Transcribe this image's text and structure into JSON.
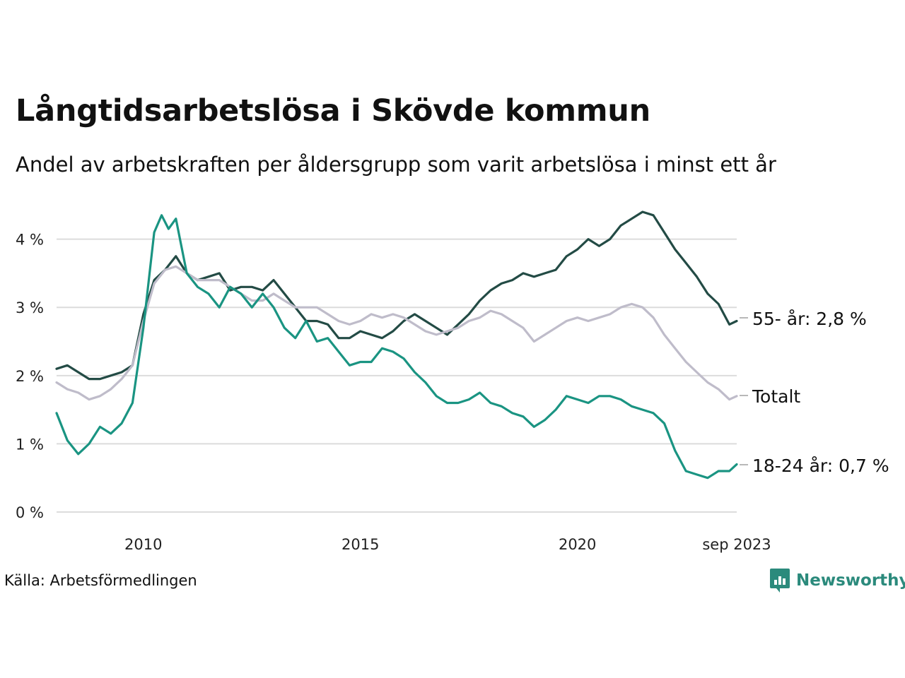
{
  "title": "Långtidsarbetslösa i Skövde kommun",
  "subtitle": "Andel av arbetskraften per åldersgrupp som varit arbetslösa i minst ett år",
  "source": "Källa: Arbetsförmedlingen",
  "brand": "Newsworthy",
  "colors": {
    "senior": "#234b45",
    "young": "#1a9482",
    "total": "#bfbcca",
    "grid": "#dcdcdc",
    "brand": "#2b8a7c"
  },
  "chart_data": {
    "type": "line",
    "ylim": [
      0,
      4.4
    ],
    "xlim": [
      2008.0,
      2023.67
    ],
    "yticks": [
      0,
      1,
      2,
      3,
      4
    ],
    "ytick_labels": [
      "0 %",
      "1 %",
      "2 %",
      "3 %",
      "4 %"
    ],
    "xticks": [
      2010,
      2015,
      2020,
      2023.67
    ],
    "xtick_labels": [
      "2010",
      "2015",
      "2020",
      "sep 2023"
    ],
    "grid": true,
    "series": [
      {
        "name": "55- år",
        "label": "55- år: 2,8 %",
        "color_key": "senior",
        "points": [
          [
            2008.0,
            2.1
          ],
          [
            2008.25,
            2.15
          ],
          [
            2008.5,
            2.05
          ],
          [
            2008.75,
            1.95
          ],
          [
            2009.0,
            1.95
          ],
          [
            2009.25,
            2.0
          ],
          [
            2009.5,
            2.05
          ],
          [
            2009.75,
            2.15
          ],
          [
            2010.0,
            2.9
          ],
          [
            2010.25,
            3.4
          ],
          [
            2010.5,
            3.55
          ],
          [
            2010.75,
            3.75
          ],
          [
            2011.0,
            3.5
          ],
          [
            2011.25,
            3.4
          ],
          [
            2011.5,
            3.45
          ],
          [
            2011.75,
            3.5
          ],
          [
            2012.0,
            3.25
          ],
          [
            2012.25,
            3.3
          ],
          [
            2012.5,
            3.3
          ],
          [
            2012.75,
            3.25
          ],
          [
            2013.0,
            3.4
          ],
          [
            2013.25,
            3.2
          ],
          [
            2013.5,
            3.0
          ],
          [
            2013.75,
            2.8
          ],
          [
            2014.0,
            2.8
          ],
          [
            2014.25,
            2.75
          ],
          [
            2014.5,
            2.55
          ],
          [
            2014.75,
            2.55
          ],
          [
            2015.0,
            2.65
          ],
          [
            2015.25,
            2.6
          ],
          [
            2015.5,
            2.55
          ],
          [
            2015.75,
            2.65
          ],
          [
            2016.0,
            2.8
          ],
          [
            2016.25,
            2.9
          ],
          [
            2016.5,
            2.8
          ],
          [
            2016.75,
            2.7
          ],
          [
            2017.0,
            2.6
          ],
          [
            2017.25,
            2.75
          ],
          [
            2017.5,
            2.9
          ],
          [
            2017.75,
            3.1
          ],
          [
            2018.0,
            3.25
          ],
          [
            2018.25,
            3.35
          ],
          [
            2018.5,
            3.4
          ],
          [
            2018.75,
            3.5
          ],
          [
            2019.0,
            3.45
          ],
          [
            2019.25,
            3.5
          ],
          [
            2019.5,
            3.55
          ],
          [
            2019.75,
            3.75
          ],
          [
            2020.0,
            3.85
          ],
          [
            2020.25,
            4.0
          ],
          [
            2020.5,
            3.9
          ],
          [
            2020.75,
            4.0
          ],
          [
            2021.0,
            4.2
          ],
          [
            2021.25,
            4.3
          ],
          [
            2021.5,
            4.4
          ],
          [
            2021.75,
            4.35
          ],
          [
            2022.0,
            4.1
          ],
          [
            2022.25,
            3.85
          ],
          [
            2022.5,
            3.65
          ],
          [
            2022.75,
            3.45
          ],
          [
            2023.0,
            3.2
          ],
          [
            2023.25,
            3.05
          ],
          [
            2023.5,
            2.75
          ],
          [
            2023.67,
            2.8
          ]
        ]
      },
      {
        "name": "Totalt",
        "label": "Totalt",
        "color_key": "total",
        "points": [
          [
            2008.0,
            1.9
          ],
          [
            2008.25,
            1.8
          ],
          [
            2008.5,
            1.75
          ],
          [
            2008.75,
            1.65
          ],
          [
            2009.0,
            1.7
          ],
          [
            2009.25,
            1.8
          ],
          [
            2009.5,
            1.95
          ],
          [
            2009.75,
            2.15
          ],
          [
            2010.0,
            2.8
          ],
          [
            2010.25,
            3.35
          ],
          [
            2010.5,
            3.55
          ],
          [
            2010.75,
            3.6
          ],
          [
            2011.0,
            3.5
          ],
          [
            2011.25,
            3.4
          ],
          [
            2011.5,
            3.4
          ],
          [
            2011.75,
            3.4
          ],
          [
            2012.0,
            3.3
          ],
          [
            2012.25,
            3.2
          ],
          [
            2012.5,
            3.1
          ],
          [
            2012.75,
            3.1
          ],
          [
            2013.0,
            3.2
          ],
          [
            2013.25,
            3.1
          ],
          [
            2013.5,
            3.0
          ],
          [
            2013.75,
            3.0
          ],
          [
            2014.0,
            3.0
          ],
          [
            2014.25,
            2.9
          ],
          [
            2014.5,
            2.8
          ],
          [
            2014.75,
            2.75
          ],
          [
            2015.0,
            2.8
          ],
          [
            2015.25,
            2.9
          ],
          [
            2015.5,
            2.85
          ],
          [
            2015.75,
            2.9
          ],
          [
            2016.0,
            2.85
          ],
          [
            2016.25,
            2.75
          ],
          [
            2016.5,
            2.65
          ],
          [
            2016.75,
            2.6
          ],
          [
            2017.0,
            2.65
          ],
          [
            2017.25,
            2.7
          ],
          [
            2017.5,
            2.8
          ],
          [
            2017.75,
            2.85
          ],
          [
            2018.0,
            2.95
          ],
          [
            2018.25,
            2.9
          ],
          [
            2018.5,
            2.8
          ],
          [
            2018.75,
            2.7
          ],
          [
            2019.0,
            2.5
          ],
          [
            2019.25,
            2.6
          ],
          [
            2019.5,
            2.7
          ],
          [
            2019.75,
            2.8
          ],
          [
            2020.0,
            2.85
          ],
          [
            2020.25,
            2.8
          ],
          [
            2020.5,
            2.85
          ],
          [
            2020.75,
            2.9
          ],
          [
            2021.0,
            3.0
          ],
          [
            2021.25,
            3.05
          ],
          [
            2021.5,
            3.0
          ],
          [
            2021.75,
            2.85
          ],
          [
            2022.0,
            2.6
          ],
          [
            2022.25,
            2.4
          ],
          [
            2022.5,
            2.2
          ],
          [
            2022.75,
            2.05
          ],
          [
            2023.0,
            1.9
          ],
          [
            2023.25,
            1.8
          ],
          [
            2023.5,
            1.65
          ],
          [
            2023.67,
            1.7
          ]
        ]
      },
      {
        "name": "18-24 år",
        "label": "18-24 år: 0,7 %",
        "color_key": "young",
        "points": [
          [
            2008.0,
            1.45
          ],
          [
            2008.25,
            1.05
          ],
          [
            2008.5,
            0.85
          ],
          [
            2008.75,
            1.0
          ],
          [
            2009.0,
            1.25
          ],
          [
            2009.25,
            1.15
          ],
          [
            2009.5,
            1.3
          ],
          [
            2009.75,
            1.6
          ],
          [
            2010.0,
            2.7
          ],
          [
            2010.25,
            4.1
          ],
          [
            2010.42,
            4.35
          ],
          [
            2010.58,
            4.15
          ],
          [
            2010.75,
            4.3
          ],
          [
            2011.0,
            3.5
          ],
          [
            2011.25,
            3.3
          ],
          [
            2011.5,
            3.2
          ],
          [
            2011.75,
            3.0
          ],
          [
            2012.0,
            3.3
          ],
          [
            2012.25,
            3.2
          ],
          [
            2012.5,
            3.0
          ],
          [
            2012.75,
            3.2
          ],
          [
            2013.0,
            3.0
          ],
          [
            2013.25,
            2.7
          ],
          [
            2013.5,
            2.55
          ],
          [
            2013.75,
            2.8
          ],
          [
            2014.0,
            2.5
          ],
          [
            2014.25,
            2.55
          ],
          [
            2014.5,
            2.35
          ],
          [
            2014.75,
            2.15
          ],
          [
            2015.0,
            2.2
          ],
          [
            2015.25,
            2.2
          ],
          [
            2015.5,
            2.4
          ],
          [
            2015.75,
            2.35
          ],
          [
            2016.0,
            2.25
          ],
          [
            2016.25,
            2.05
          ],
          [
            2016.5,
            1.9
          ],
          [
            2016.75,
            1.7
          ],
          [
            2017.0,
            1.6
          ],
          [
            2017.25,
            1.6
          ],
          [
            2017.5,
            1.65
          ],
          [
            2017.75,
            1.75
          ],
          [
            2018.0,
            1.6
          ],
          [
            2018.25,
            1.55
          ],
          [
            2018.5,
            1.45
          ],
          [
            2018.75,
            1.4
          ],
          [
            2019.0,
            1.25
          ],
          [
            2019.25,
            1.35
          ],
          [
            2019.5,
            1.5
          ],
          [
            2019.75,
            1.7
          ],
          [
            2020.0,
            1.65
          ],
          [
            2020.25,
            1.6
          ],
          [
            2020.5,
            1.7
          ],
          [
            2020.75,
            1.7
          ],
          [
            2021.0,
            1.65
          ],
          [
            2021.25,
            1.55
          ],
          [
            2021.5,
            1.5
          ],
          [
            2021.75,
            1.45
          ],
          [
            2022.0,
            1.3
          ],
          [
            2022.25,
            0.9
          ],
          [
            2022.5,
            0.6
          ],
          [
            2022.75,
            0.55
          ],
          [
            2023.0,
            0.5
          ],
          [
            2023.25,
            0.6
          ],
          [
            2023.5,
            0.6
          ],
          [
            2023.67,
            0.7
          ]
        ]
      }
    ]
  }
}
